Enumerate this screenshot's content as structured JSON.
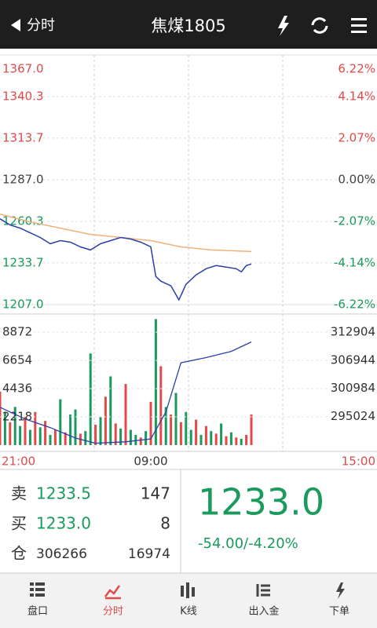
{
  "header": {
    "back": "分时",
    "title": "焦煤1805"
  },
  "chart": {
    "type": "line",
    "xlim": [
      0,
      375
    ],
    "xticks": [
      {
        "value": 0,
        "label": "21:00"
      },
      {
        "value": 150,
        "label": "09:00"
      },
      {
        "value": 375,
        "label": "15:00"
      }
    ],
    "ylim": [
      1207,
      1367
    ],
    "yticks": [
      {
        "value": 1367,
        "label": "1367.0"
      },
      {
        "value": 1340.3,
        "label": "1340.3"
      },
      {
        "value": 1313.7,
        "label": "1313.7"
      },
      {
        "value": 1287,
        "label": "1287.0"
      },
      {
        "value": 1260.3,
        "label": "1260.3"
      },
      {
        "value": 1233.7,
        "label": "1233.7"
      },
      {
        "value": 1207,
        "label": "1207.0"
      }
    ],
    "pct_ticks": [
      {
        "value": 6.22,
        "label": "6.22%"
      },
      {
        "value": 4.14,
        "label": "4.14%"
      },
      {
        "value": 2.07,
        "label": "2.07%"
      },
      {
        "value": 0,
        "label": "0.00%"
      },
      {
        "value": -2.07,
        "label": "-2.07%"
      },
      {
        "value": -4.14,
        "label": "-4.14%"
      },
      {
        "value": -6.22,
        "label": "-6.22%"
      }
    ],
    "up_color": "#e04a4a",
    "down_color": "#1a9a5c",
    "flat_color": "#444444",
    "price": {
      "color": "#2a3fa8",
      "x": [
        0,
        10,
        20,
        30,
        40,
        50,
        60,
        70,
        80,
        90,
        100,
        110,
        120,
        130,
        140,
        150,
        155,
        160,
        170,
        178,
        185,
        195,
        205,
        215,
        225,
        235,
        240,
        245,
        250
      ],
      "values": [
        1262,
        1258,
        1256,
        1253,
        1250,
        1246,
        1248,
        1247,
        1244,
        1242,
        1246,
        1248,
        1250,
        1249,
        1247,
        1244,
        1225,
        1222,
        1219,
        1210,
        1220,
        1226,
        1230,
        1232,
        1231,
        1230,
        1228,
        1232,
        1233
      ]
    },
    "average": {
      "color": "#f0b27a",
      "x": [
        0,
        30,
        60,
        90,
        120,
        150,
        180,
        210,
        250
      ],
      "values": [
        1265,
        1260,
        1256,
        1252,
        1250,
        1248,
        1244,
        1242,
        1241
      ]
    },
    "volume": {
      "ylim": [
        0,
        10300
      ],
      "yticks": [
        8872,
        6654,
        4436,
        2218
      ],
      "step": 5,
      "values": [
        4200,
        2600,
        1800,
        3000,
        1500,
        2200,
        1200,
        2600,
        1400,
        1900,
        800,
        1200,
        3600,
        1000,
        2400,
        2800,
        900,
        1100,
        7200,
        1600,
        2200,
        3800,
        5400,
        1700,
        1300,
        4800,
        1200,
        800,
        600,
        1100,
        3400,
        9900,
        6200,
        3000,
        2400,
        4100,
        1800,
        2600,
        1200,
        2000,
        800,
        1500,
        1100,
        900,
        1700,
        700,
        1000,
        600,
        500,
        800,
        2400
      ],
      "rising": [
        true,
        false,
        true,
        false,
        false,
        true,
        false,
        true,
        false,
        true,
        false,
        true,
        false,
        true,
        false,
        false,
        true,
        false,
        false,
        true,
        false,
        true,
        false,
        true,
        false,
        true,
        false,
        false,
        true,
        false,
        true,
        false,
        true,
        false,
        true,
        false,
        true,
        false,
        false,
        true,
        false,
        true,
        false,
        true,
        false,
        true,
        false,
        true,
        false,
        true,
        true
      ]
    },
    "open_interest": {
      "color": "#2a3fa8",
      "y2lim": [
        289000,
        316700
      ],
      "y2ticks": [
        312904,
        306944,
        300984,
        295024
      ],
      "x": [
        0,
        25,
        50,
        75,
        95,
        125,
        150,
        165,
        180,
        205,
        230,
        250
      ],
      "values": [
        297000,
        294500,
        292700,
        290500,
        289400,
        289700,
        290300,
        296000,
        306400,
        307500,
        308800,
        310800
      ]
    }
  },
  "quote": {
    "sell": {
      "label": "卖",
      "price": "1233.5",
      "qty": "147"
    },
    "buy": {
      "label": "买",
      "price": "1233.0",
      "qty": "8"
    },
    "position": {
      "label": "仓",
      "value": "306266",
      "change": "16974"
    },
    "last": "1233.0",
    "change": "-54.00/-4.20%"
  },
  "tabs": [
    "盘口",
    "分时",
    "K线",
    "出入金",
    "下单"
  ]
}
